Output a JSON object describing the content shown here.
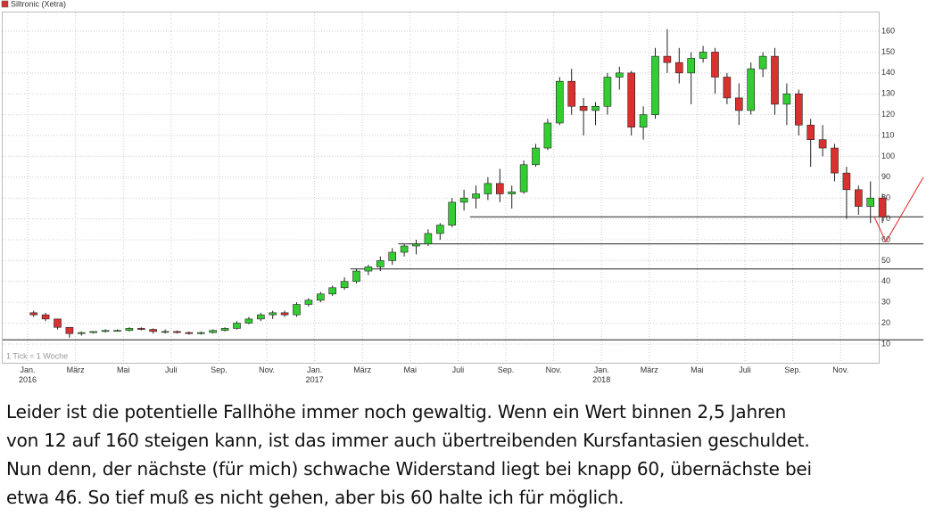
{
  "chart_data": {
    "type": "candlestick",
    "title": "Siltronic (Xetra)",
    "note": "1 Tick = 1 Woche",
    "up_color": "#33cc33",
    "down_color": "#d93030",
    "legend_color": "#d93030",
    "ylim": [
      1,
      169
    ],
    "yticks": [
      10,
      20,
      30,
      40,
      50,
      60,
      70,
      80,
      90,
      100,
      110,
      120,
      130,
      140,
      150,
      160
    ],
    "grid": true,
    "x": [
      "2016-01",
      "2016-01",
      "2016-02",
      "2016-02",
      "2016-03",
      "2016-03",
      "2016-04",
      "2016-04",
      "2016-05",
      "2016-05",
      "2016-06",
      "2016-06",
      "2016-07",
      "2016-07",
      "2016-08",
      "2016-08",
      "2016-09",
      "2016-09",
      "2016-10",
      "2016-10",
      "2016-11",
      "2016-11",
      "2016-12",
      "2016-12",
      "2017-01",
      "2017-01",
      "2017-02",
      "2017-02",
      "2017-03",
      "2017-03",
      "2017-04",
      "2017-04",
      "2017-05",
      "2017-05",
      "2017-06",
      "2017-06",
      "2017-07",
      "2017-07",
      "2017-08",
      "2017-08",
      "2017-09",
      "2017-09",
      "2017-10",
      "2017-10",
      "2017-11",
      "2017-11",
      "2017-12",
      "2017-12",
      "2018-01",
      "2018-01",
      "2018-02",
      "2018-02",
      "2018-03",
      "2018-03",
      "2018-04",
      "2018-04",
      "2018-05",
      "2018-05",
      "2018-06",
      "2018-06",
      "2018-07",
      "2018-07",
      "2018-08",
      "2018-08",
      "2018-09",
      "2018-09",
      "2018-10",
      "2018-10",
      "2018-11",
      "2018-11",
      "2018-12",
      "2018-12"
    ],
    "ohlc": [
      [
        25,
        26,
        23,
        24
      ],
      [
        24,
        25,
        21,
        22
      ],
      [
        22,
        22,
        17,
        18
      ],
      [
        18,
        18,
        13,
        15
      ],
      [
        15,
        16,
        14,
        15.5
      ],
      [
        15.5,
        16,
        15,
        16
      ],
      [
        16,
        17,
        15.5,
        16.5
      ],
      [
        16.5,
        17,
        16,
        16.5
      ],
      [
        16.5,
        18,
        16,
        17.5
      ],
      [
        17.5,
        18,
        16.5,
        17
      ],
      [
        17,
        17.5,
        15,
        16
      ],
      [
        16,
        17,
        15,
        16
      ],
      [
        16,
        16.5,
        15,
        15.5
      ],
      [
        15.5,
        16,
        14.5,
        15
      ],
      [
        15,
        16,
        14.5,
        15.5
      ],
      [
        15.5,
        17,
        15,
        16.5
      ],
      [
        16.5,
        18,
        16,
        17.5
      ],
      [
        17.5,
        21,
        17,
        20
      ],
      [
        20,
        23,
        19.5,
        22
      ],
      [
        22,
        25,
        21,
        24
      ],
      [
        24,
        26,
        22,
        25
      ],
      [
        25,
        26,
        23,
        24
      ],
      [
        24,
        30,
        23,
        29
      ],
      [
        29,
        32,
        28,
        31
      ],
      [
        31,
        35,
        30,
        34
      ],
      [
        34,
        38,
        33,
        37
      ],
      [
        37,
        42,
        36,
        40
      ],
      [
        40,
        46,
        39,
        45
      ],
      [
        45,
        48,
        43,
        47
      ],
      [
        47,
        52,
        45,
        50
      ],
      [
        50,
        56,
        48,
        54
      ],
      [
        54,
        58,
        52,
        57
      ],
      [
        57,
        60,
        53,
        58
      ],
      [
        58,
        65,
        57,
        63
      ],
      [
        63,
        68,
        60,
        67
      ],
      [
        67,
        80,
        66,
        78
      ],
      [
        78,
        84,
        74,
        80
      ],
      [
        80,
        86,
        75,
        82
      ],
      [
        82,
        90,
        79,
        87
      ],
      [
        87,
        94,
        78,
        82
      ],
      [
        82,
        86,
        75,
        83
      ],
      [
        83,
        98,
        82,
        96
      ],
      [
        96,
        106,
        95,
        104
      ],
      [
        104,
        118,
        103,
        116
      ],
      [
        116,
        138,
        115,
        136
      ],
      [
        136,
        142,
        120,
        124
      ],
      [
        124,
        128,
        110,
        122
      ],
      [
        122,
        126,
        115,
        124
      ],
      [
        124,
        140,
        120,
        138
      ],
      [
        138,
        143,
        132,
        140
      ],
      [
        140,
        141,
        110,
        114
      ],
      [
        114,
        124,
        108,
        120
      ],
      [
        120,
        152,
        118,
        148
      ],
      [
        148,
        161,
        140,
        145
      ],
      [
        145,
        152,
        135,
        140
      ],
      [
        140,
        150,
        125,
        147
      ],
      [
        147,
        153,
        145,
        150
      ],
      [
        150,
        152,
        130,
        138
      ],
      [
        138,
        140,
        125,
        128
      ],
      [
        128,
        135,
        115,
        122
      ],
      [
        122,
        145,
        120,
        142
      ],
      [
        142,
        150,
        138,
        148
      ],
      [
        148,
        152,
        120,
        125
      ],
      [
        125,
        135,
        115,
        130
      ],
      [
        130,
        132,
        110,
        115
      ],
      [
        115,
        118,
        95,
        108
      ],
      [
        108,
        115,
        100,
        104
      ],
      [
        104,
        106,
        88,
        92
      ],
      [
        92,
        95,
        70,
        84
      ],
      [
        84,
        86,
        72,
        76
      ],
      [
        76,
        88,
        68,
        80
      ],
      [
        80,
        82,
        68,
        71
      ]
    ],
    "xticks": [
      {
        "value": "2016-01",
        "label": "Jan. 2016"
      },
      {
        "value": "2016-03",
        "label": "März"
      },
      {
        "value": "2016-05",
        "label": "Mai"
      },
      {
        "value": "2016-07",
        "label": "Juli"
      },
      {
        "value": "2016-09",
        "label": "Sep."
      },
      {
        "value": "2016-11",
        "label": "Nov."
      },
      {
        "value": "2017-01",
        "label": "Jan. 2017"
      },
      {
        "value": "2017-03",
        "label": "März"
      },
      {
        "value": "2017-05",
        "label": "Mai"
      },
      {
        "value": "2017-07",
        "label": "Juli"
      },
      {
        "value": "2017-09",
        "label": "Sep."
      },
      {
        "value": "2017-11",
        "label": "Nov."
      },
      {
        "value": "2018-01",
        "label": "Jan. 2018"
      },
      {
        "value": "2018-03",
        "label": "März"
      },
      {
        "value": "2018-05",
        "label": "Mai"
      },
      {
        "value": "2018-07",
        "label": "Juli"
      },
      {
        "value": "2018-09",
        "label": "Sep."
      },
      {
        "value": "2018-11",
        "label": "Nov."
      }
    ],
    "support_lines": [
      {
        "y": 71,
        "from": "2017-07"
      },
      {
        "y": 58,
        "from": "2017-04"
      },
      {
        "y": 46,
        "from": "2017-02"
      },
      {
        "y": 12,
        "from": "2016-01"
      }
    ],
    "projection": {
      "color": "#e02020",
      "values": [
        71,
        59,
        90
      ]
    }
  },
  "caption": [
    "Leider ist die potentielle Fallhöhe immer noch gewaltig. Wenn ein Wert binnen 2,5 Jahren",
    "von 12 auf 160 steigen kann, ist das immer auch übertreibenden Kursfantasien geschuldet.",
    "Nun denn, der nächste (für mich) schwache Widerstand liegt bei knapp 60, übernächste bei",
    "etwa 46. So tief muß es nicht gehen, aber bis 60 halte ich für möglich."
  ]
}
